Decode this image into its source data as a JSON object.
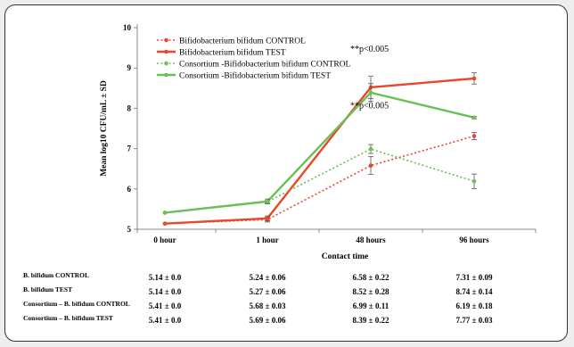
{
  "chart_data": {
    "type": "line",
    "x": [
      "0 hour",
      "1 hour",
      "48 hours",
      "96 hours"
    ],
    "xlabel": "Contact time",
    "ylabel": "Mean log10 CFU/mL ± SD",
    "ylim": [
      5,
      10
    ],
    "yticks": [
      "5",
      "6",
      "7",
      "8",
      "9",
      "10"
    ],
    "grid": false,
    "legend_position": "top-left",
    "series": [
      {
        "name": "Bifidobacterium bifidum CONTROL",
        "color": "#e8472b",
        "style": "dotted",
        "values": [
          5.14,
          5.24,
          6.58,
          7.31
        ],
        "sd": [
          0.0,
          0.06,
          0.22,
          0.09
        ]
      },
      {
        "name": "Bifidobacterium bifidum TEST",
        "color": "#e8472b",
        "style": "solid",
        "values": [
          5.14,
          5.27,
          8.52,
          8.74
        ],
        "sd": [
          0.0,
          0.06,
          0.28,
          0.14
        ]
      },
      {
        "name": "Consortium -Bifidobacterium bifidum CONTROL",
        "color": "#6abf55",
        "style": "dotted",
        "values": [
          5.41,
          5.68,
          6.99,
          6.19
        ],
        "sd": [
          0.0,
          0.03,
          0.11,
          0.18
        ]
      },
      {
        "name": "Consortium -Bifidobacterium bifidum TEST",
        "color": "#6abf55",
        "style": "solid",
        "values": [
          5.41,
          5.69,
          8.39,
          7.77
        ],
        "sd": [
          0.0,
          0.06,
          0.22,
          0.03
        ]
      }
    ],
    "annotations": [
      {
        "text": "**p<0.005",
        "x": "48 hours",
        "y": 9.4
      },
      {
        "text": "**p<0.005",
        "x": "48 hours",
        "y": 8.0
      }
    ],
    "table": {
      "rows": [
        {
          "label": "B. bifidum  CONTROL",
          "cells": [
            "5.14 ± 0.0",
            "5.24 ± 0.06",
            "6.58 ± 0.22",
            "7.31 ± 0.09"
          ]
        },
        {
          "label": "B. bifidum  TEST",
          "cells": [
            "5.14 ± 0.0",
            "5.27 ± 0.06",
            "8.52 ± 0.28",
            "8.74 ± 0.14"
          ]
        },
        {
          "label": "Consortium – B. bifidum  CONTROL",
          "cells": [
            "5.41 ± 0.0",
            "5.68 ± 0.03",
            "6.99 ± 0.11",
            "6.19 ± 0.18"
          ]
        },
        {
          "label": "Consortium  – B. bifidum  TEST",
          "cells": [
            "5.41 ± 0.0",
            "5.69 ± 0.06",
            "8.39 ± 0.22",
            "7.77 ± 0.03"
          ]
        }
      ]
    }
  }
}
